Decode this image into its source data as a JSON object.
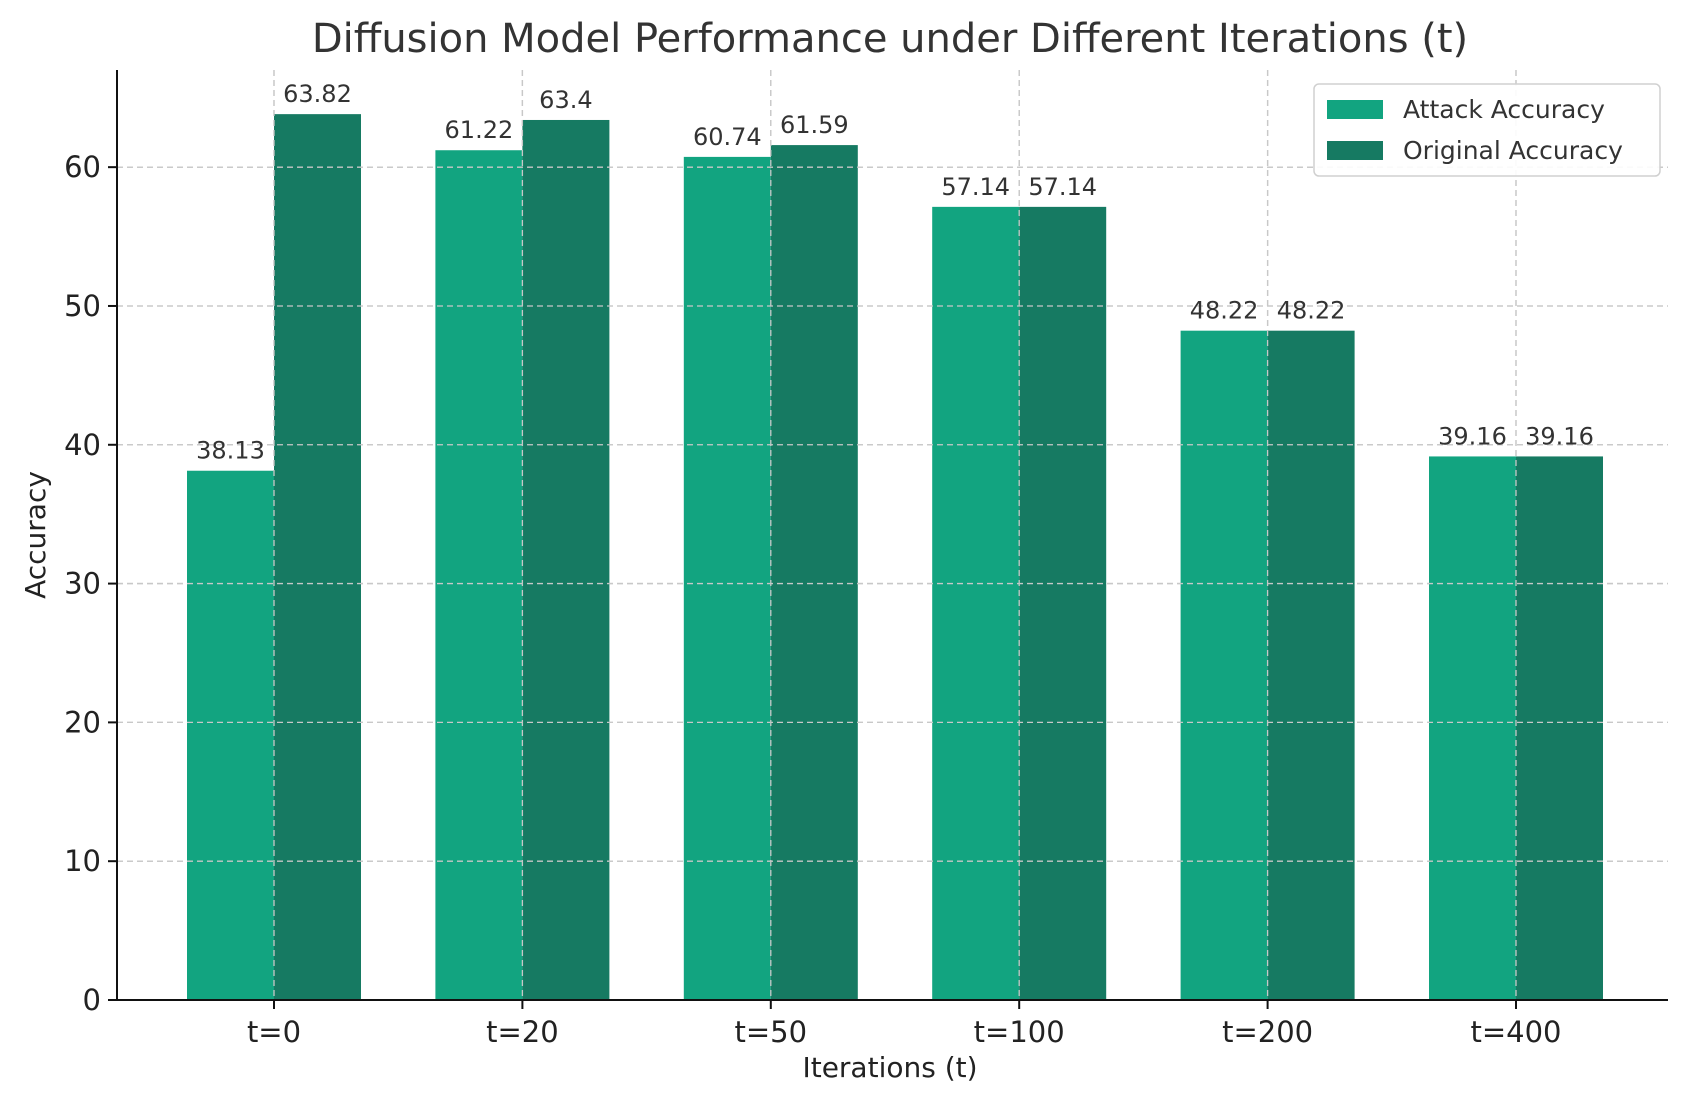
{
  "chart_data": {
    "type": "bar",
    "title": "Diffusion Model Performance under Different Iterations (t)",
    "xlabel": "Iterations (t)",
    "ylabel": "Accuracy",
    "categories": [
      "t=0",
      "t=20",
      "t=50",
      "t=100",
      "t=200",
      "t=400"
    ],
    "series": [
      {
        "name": "Attack Accuracy",
        "color": "#12a480",
        "values": [
          38.13,
          61.22,
          60.74,
          57.14,
          48.22,
          39.16
        ],
        "labels": [
          "38.13",
          "61.22",
          "60.74",
          "57.14",
          "48.22",
          "39.16"
        ]
      },
      {
        "name": "Original Accuracy",
        "color": "#167a62",
        "values": [
          63.82,
          63.4,
          61.59,
          57.14,
          48.22,
          39.16
        ],
        "labels": [
          "63.82",
          "63.4",
          "61.59",
          "57.14",
          "48.22",
          "39.16"
        ]
      }
    ],
    "ylim": [
      0,
      67
    ],
    "yticks": [
      0,
      10,
      20,
      30,
      40,
      50,
      60
    ],
    "ytick_labels": [
      "0",
      "10",
      "20",
      "30",
      "40",
      "50",
      "60"
    ],
    "grid": true,
    "legend_position": "top-right"
  }
}
